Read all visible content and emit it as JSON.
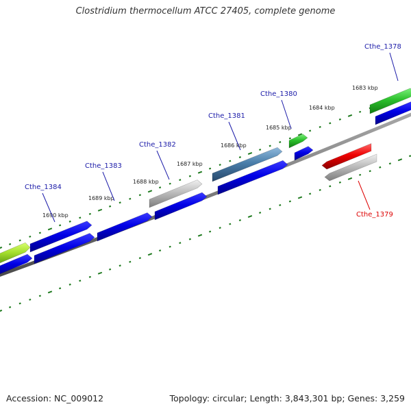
{
  "title": "Clostridium thermocellum ATCC 27405, complete genome",
  "footer": {
    "accession": "Accession: NC_009012",
    "summary": "Topology: circular; Length: 3,843,301 bp; Genes: 3,259"
  },
  "colors": {
    "backbone": "#7a7a7a",
    "tick": "#1e7a1e",
    "forward_label": "#1a1aa8",
    "reverse_label": "#dd0000"
  },
  "ticks": [
    {
      "label": "1683 kbp"
    },
    {
      "label": "1684 kbp"
    },
    {
      "label": "1685 kbp"
    },
    {
      "label": "1686 kbp"
    },
    {
      "label": "1687 kbp"
    },
    {
      "label": "1688 kbp"
    },
    {
      "label": "1689 kbp"
    },
    {
      "label": "1690 kbp"
    }
  ],
  "gene_labels": [
    {
      "text": "Cthe_1378",
      "strand": "forward"
    },
    {
      "text": "Cthe_1380",
      "strand": "forward"
    },
    {
      "text": "Cthe_1381",
      "strand": "forward"
    },
    {
      "text": "Cthe_1382",
      "strand": "forward"
    },
    {
      "text": "Cthe_1383",
      "strand": "forward"
    },
    {
      "text": "Cthe_1384",
      "strand": "forward"
    },
    {
      "text": "Cthe_1379",
      "strand": "reverse"
    }
  ],
  "feature_colors": {
    "cds": "#0000dd",
    "gene_green": "#2cb82c",
    "gene_lightgreen": "#a6e02e",
    "gene_grey": "#b4b4b4",
    "gene_steelblue": "#4a7eaa",
    "gene_red": "#e00000"
  }
}
